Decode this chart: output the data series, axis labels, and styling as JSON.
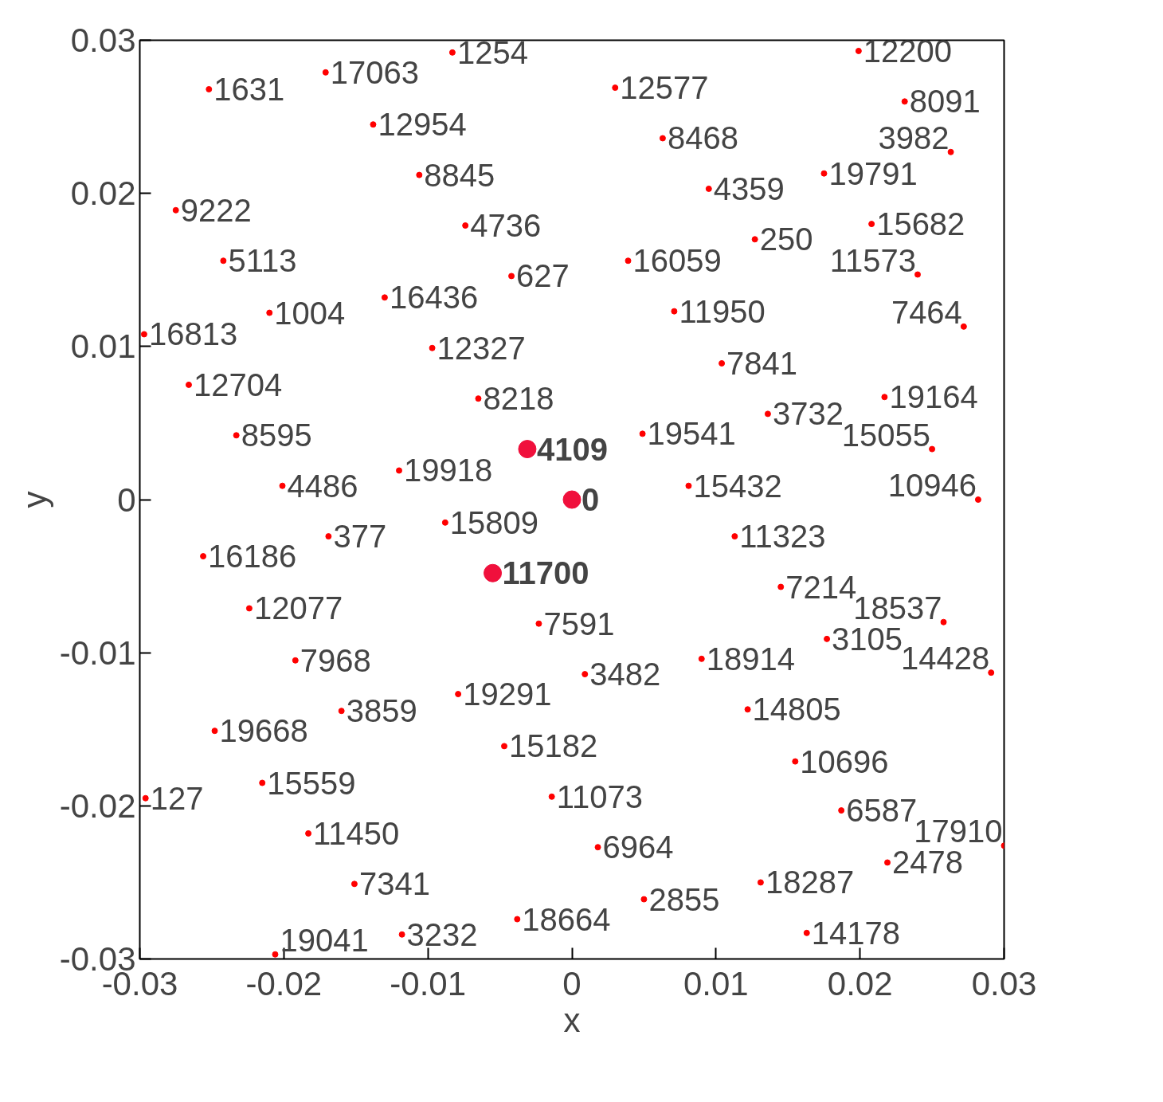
{
  "chart_data": {
    "type": "scatter",
    "xlabel": "x",
    "ylabel": "y",
    "xlim": [
      -0.03,
      0.03
    ],
    "ylim": [
      -0.03,
      0.03
    ],
    "xticks": [
      -0.03,
      -0.02,
      -0.01,
      0,
      0.01,
      0.02,
      0.03
    ],
    "yticks": [
      -0.03,
      -0.02,
      -0.01,
      0,
      0.01,
      0.02,
      0.03
    ],
    "grid": false,
    "marker": "circle",
    "series": [
      {
        "color": "#ff0000",
        "x": [
          -0.0252,
          -0.0171,
          -0.0083,
          -0.0138,
          -0.0106,
          -0.0074,
          -0.0275,
          -0.0242,
          -0.013,
          -0.0042,
          -0.021,
          -0.0297,
          -0.0097,
          -0.0266,
          -0.0065,
          -0.0233,
          -0.012,
          -0.0201,
          -0.0088,
          -0.0169,
          -0.0256,
          -0.0224,
          -0.0023,
          -0.0192,
          0.0009,
          -0.0079,
          -0.016,
          -0.0248,
          -0.0047,
          -0.0296,
          -0.0215,
          -0.0014,
          -0.0183,
          0.0018,
          -0.0151,
          -0.0038,
          -0.0118,
          -0.0206,
          0.005,
          0.0131,
          0.0163,
          0.0219,
          0.03,
          0.0187,
          0.0155,
          0.0122,
          0.009,
          0.0177,
          0.0258,
          0.0291,
          0.0145,
          0.0113,
          0.0081,
          0.0282,
          0.025,
          0.0049,
          0.0136,
          0.0217,
          0.0104,
          0.0071,
          0.0272,
          0.0039,
          0.0127,
          0.024,
          0.0208,
          0.0095,
          0.0175,
          0.0263,
          0.0063,
          0.0231,
          0.003,
          0.0199
        ],
        "values": [
          0.0268,
          0.0279,
          0.0292,
          0.0245,
          0.0212,
          0.0179,
          0.0189,
          0.0156,
          0.0132,
          0.0146,
          0.0122,
          0.0108,
          0.0099,
          0.0075,
          0.0066,
          0.0042,
          0.0019,
          0.0009,
          -0.0015,
          -0.0024,
          -0.0037,
          -0.0071,
          -0.0081,
          -0.0105,
          -0.0114,
          -0.0127,
          -0.0138,
          -0.0151,
          -0.0161,
          -0.0195,
          -0.0185,
          -0.0194,
          -0.0218,
          -0.0227,
          -0.0251,
          -0.0274,
          -0.0284,
          -0.0297,
          -0.0261,
          -0.025,
          -0.0283,
          -0.0237,
          -0.0226,
          -0.0203,
          -0.0171,
          -0.0137,
          -0.0104,
          -0.0091,
          -0.008,
          -0.0113,
          -0.0057,
          -0.0024,
          0.0009,
          0.0,
          0.0033,
          0.0043,
          0.0056,
          0.0067,
          0.0089,
          0.0123,
          0.0113,
          0.0156,
          0.017,
          0.0147,
          0.018,
          0.0203,
          0.0213,
          0.0227,
          0.0236,
          0.026,
          0.0269,
          0.0293
        ]
      },
      {
        "color": "#f0103c",
        "x": [
          -0.0031,
          0.0,
          -0.0055
        ],
        "values": [
          0.0033,
          0.0,
          -0.0048
        ]
      }
    ],
    "annotations": [
      {
        "text": "1631",
        "x": -0.0252,
        "y": 0.0268
      },
      {
        "text": "17063",
        "x": -0.0171,
        "y": 0.0279
      },
      {
        "text": "1254",
        "x": -0.0083,
        "y": 0.0292
      },
      {
        "text": "12954",
        "x": -0.0138,
        "y": 0.0245
      },
      {
        "text": "8845",
        "x": -0.0106,
        "y": 0.0212
      },
      {
        "text": "4736",
        "x": -0.0074,
        "y": 0.0179
      },
      {
        "text": "9222",
        "x": -0.0275,
        "y": 0.0189
      },
      {
        "text": "5113",
        "x": -0.0242,
        "y": 0.0156
      },
      {
        "text": "16436",
        "x": -0.013,
        "y": 0.0132
      },
      {
        "text": "627",
        "x": -0.0042,
        "y": 0.0146
      },
      {
        "text": "1004",
        "x": -0.021,
        "y": 0.0122
      },
      {
        "text": "16813",
        "x": -0.0297,
        "y": 0.0108
      },
      {
        "text": "12327",
        "x": -0.0097,
        "y": 0.0099
      },
      {
        "text": "12704",
        "x": -0.0266,
        "y": 0.0075
      },
      {
        "text": "8218",
        "x": -0.0065,
        "y": 0.0066
      },
      {
        "text": "8595",
        "x": -0.0233,
        "y": 0.0042
      },
      {
        "text": "19918",
        "x": -0.012,
        "y": 0.0019
      },
      {
        "text": "4486",
        "x": -0.0201,
        "y": 0.0009
      },
      {
        "text": "15809",
        "x": -0.0088,
        "y": -0.0015
      },
      {
        "text": "377",
        "x": -0.0169,
        "y": -0.0024
      },
      {
        "text": "16186",
        "x": -0.0256,
        "y": -0.0037
      },
      {
        "text": "12077",
        "x": -0.0224,
        "y": -0.0071
      },
      {
        "text": "7591",
        "x": -0.0023,
        "y": -0.0081
      },
      {
        "text": "7968",
        "x": -0.0192,
        "y": -0.0105
      },
      {
        "text": "3482",
        "x": 0.0009,
        "y": -0.0114
      },
      {
        "text": "19291",
        "x": -0.0079,
        "y": -0.0127
      },
      {
        "text": "3859",
        "x": -0.016,
        "y": -0.0138
      },
      {
        "text": "19668",
        "x": -0.0248,
        "y": -0.0151
      },
      {
        "text": "15182",
        "x": -0.0047,
        "y": -0.0161
      },
      {
        "text": "127",
        "x": -0.0296,
        "y": -0.0195
      },
      {
        "text": "15559",
        "x": -0.0215,
        "y": -0.0185
      },
      {
        "text": "11073",
        "x": -0.0014,
        "y": -0.0194
      },
      {
        "text": "11450",
        "x": -0.0183,
        "y": -0.0218
      },
      {
        "text": "6964",
        "x": 0.0018,
        "y": -0.0227
      },
      {
        "text": "7341",
        "x": -0.0151,
        "y": -0.0251
      },
      {
        "text": "18664",
        "x": -0.0038,
        "y": -0.0274
      },
      {
        "text": "3232",
        "x": -0.0118,
        "y": -0.0284
      },
      {
        "text": "19041",
        "x": -0.0206,
        "y": -0.0297
      },
      {
        "text": "2855",
        "x": 0.005,
        "y": -0.0261
      },
      {
        "text": "18287",
        "x": 0.0131,
        "y": -0.025
      },
      {
        "text": "14178",
        "x": 0.0163,
        "y": -0.0283
      },
      {
        "text": "2478",
        "x": 0.0219,
        "y": -0.0237
      },
      {
        "text": "17910",
        "x": 0.03,
        "y": -0.0226
      },
      {
        "text": "6587",
        "x": 0.0187,
        "y": -0.0203
      },
      {
        "text": "10696",
        "x": 0.0155,
        "y": -0.0171
      },
      {
        "text": "14805",
        "x": 0.0122,
        "y": -0.0137
      },
      {
        "text": "18914",
        "x": 0.009,
        "y": -0.0104
      },
      {
        "text": "3105",
        "x": 0.0177,
        "y": -0.0091
      },
      {
        "text": "18537",
        "x": 0.0258,
        "y": -0.008
      },
      {
        "text": "14428",
        "x": 0.0291,
        "y": -0.0113
      },
      {
        "text": "7214",
        "x": 0.0145,
        "y": -0.0057
      },
      {
        "text": "11323",
        "x": 0.0113,
        "y": -0.0024
      },
      {
        "text": "15432",
        "x": 0.0081,
        "y": 0.0009
      },
      {
        "text": "10946",
        "x": 0.0282,
        "y": 0.0
      },
      {
        "text": "15055",
        "x": 0.025,
        "y": 0.0033
      },
      {
        "text": "19541",
        "x": 0.0049,
        "y": 0.0043
      },
      {
        "text": "3732",
        "x": 0.0136,
        "y": 0.0056
      },
      {
        "text": "19164",
        "x": 0.0217,
        "y": 0.0067
      },
      {
        "text": "7841",
        "x": 0.0104,
        "y": 0.0089
      },
      {
        "text": "11950",
        "x": 0.0071,
        "y": 0.0123
      },
      {
        "text": "7464",
        "x": 0.0272,
        "y": 0.0113
      },
      {
        "text": "16059",
        "x": 0.0039,
        "y": 0.0156
      },
      {
        "text": "250",
        "x": 0.0127,
        "y": 0.017
      },
      {
        "text": "11573",
        "x": 0.024,
        "y": 0.0147
      },
      {
        "text": "15682",
        "x": 0.0208,
        "y": 0.018
      },
      {
        "text": "4359",
        "x": 0.0095,
        "y": 0.0203
      },
      {
        "text": "19791",
        "x": 0.0175,
        "y": 0.0213
      },
      {
        "text": "3982",
        "x": 0.0263,
        "y": 0.0227
      },
      {
        "text": "8468",
        "x": 0.0063,
        "y": 0.0236
      },
      {
        "text": "8091",
        "x": 0.0231,
        "y": 0.026
      },
      {
        "text": "12577",
        "x": 0.003,
        "y": 0.0269
      },
      {
        "text": "12200",
        "x": 0.0199,
        "y": 0.0293
      },
      {
        "text": "4109",
        "x": -0.0031,
        "y": 0.0033
      },
      {
        "text": "0",
        "x": 0.0,
        "y": 0.0
      },
      {
        "text": "11700",
        "x": -0.0055,
        "y": -0.0048
      }
    ]
  }
}
